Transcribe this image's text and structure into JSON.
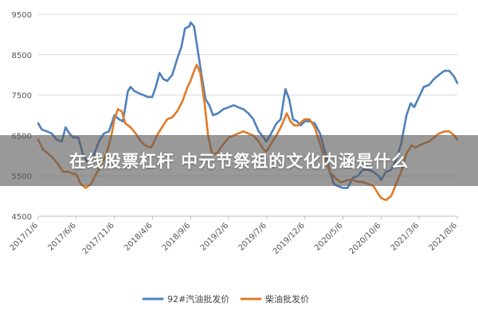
{
  "overlay": {
    "headline": "在线股票杠杆 中元节祭祖的文化内涵是什么"
  },
  "chart_data": {
    "type": "line",
    "title": "",
    "xlabel": "",
    "ylabel": "",
    "ylim": [
      4500,
      9500
    ],
    "yticks": [
      4500,
      5500,
      6500,
      7500,
      8500,
      9500
    ],
    "xlim": [
      "2017-01-06",
      "2021-08-06"
    ],
    "x_tick_labels": [
      "2017/1/6",
      "2017/6/6",
      "2017/11/6",
      "2018/4/6",
      "2018/9/6",
      "2019/2/6",
      "2019/7/6",
      "2019/12/6",
      "2020/5/6",
      "2020/10/6",
      "2021/3/6",
      "2021/8/6"
    ],
    "grid": true,
    "legend_position": "bottom",
    "colors": {
      "gasoline": "#4f81bd",
      "diesel": "#e07b28",
      "grid": "#d9d9d9",
      "axis": "#bfbfbf"
    },
    "series": [
      {
        "name": "92#汽油批发价",
        "color": "#4f81bd",
        "points": [
          [
            "2017-01-06",
            6800
          ],
          [
            "2017-01-20",
            6650
          ],
          [
            "2017-02-10",
            6600
          ],
          [
            "2017-03-01",
            6550
          ],
          [
            "2017-03-20",
            6400
          ],
          [
            "2017-04-10",
            6350
          ],
          [
            "2017-04-25",
            6700
          ],
          [
            "2017-05-10",
            6550
          ],
          [
            "2017-05-25",
            6450
          ],
          [
            "2017-06-15",
            6450
          ],
          [
            "2017-07-05",
            6000
          ],
          [
            "2017-07-25",
            5800
          ],
          [
            "2017-08-15",
            6000
          ],
          [
            "2017-09-05",
            6350
          ],
          [
            "2017-09-25",
            6550
          ],
          [
            "2017-10-15",
            6600
          ],
          [
            "2017-11-06",
            7000
          ],
          [
            "2017-11-25",
            6900
          ],
          [
            "2017-12-10",
            6850
          ],
          [
            "2017-12-30",
            7600
          ],
          [
            "2018-01-10",
            7700
          ],
          [
            "2018-01-25",
            7600
          ],
          [
            "2018-02-10",
            7550
          ],
          [
            "2018-03-01",
            7500
          ],
          [
            "2018-03-20",
            7450
          ],
          [
            "2018-04-06",
            7450
          ],
          [
            "2018-04-20",
            7700
          ],
          [
            "2018-05-05",
            8050
          ],
          [
            "2018-05-20",
            7900
          ],
          [
            "2018-06-05",
            7850
          ],
          [
            "2018-06-25",
            8000
          ],
          [
            "2018-07-15",
            8400
          ],
          [
            "2018-08-01",
            8700
          ],
          [
            "2018-08-15",
            9150
          ],
          [
            "2018-09-01",
            9200
          ],
          [
            "2018-09-06",
            9300
          ],
          [
            "2018-09-20",
            9200
          ],
          [
            "2018-10-05",
            8600
          ],
          [
            "2018-10-20",
            8000
          ],
          [
            "2018-11-05",
            7400
          ],
          [
            "2018-11-20",
            7250
          ],
          [
            "2018-12-05",
            7000
          ],
          [
            "2018-12-25",
            7050
          ],
          [
            "2019-01-15",
            7150
          ],
          [
            "2019-02-06",
            7200
          ],
          [
            "2019-02-25",
            7250
          ],
          [
            "2019-03-15",
            7200
          ],
          [
            "2019-04-05",
            7150
          ],
          [
            "2019-04-25",
            7050
          ],
          [
            "2019-05-15",
            6900
          ],
          [
            "2019-06-05",
            6600
          ],
          [
            "2019-06-25",
            6450
          ],
          [
            "2019-07-06",
            6350
          ],
          [
            "2019-07-25",
            6550
          ],
          [
            "2019-08-15",
            6800
          ],
          [
            "2019-09-01",
            6900
          ],
          [
            "2019-09-20",
            7650
          ],
          [
            "2019-10-05",
            7400
          ],
          [
            "2019-10-20",
            6900
          ],
          [
            "2019-11-05",
            6850
          ],
          [
            "2019-11-20",
            6750
          ],
          [
            "2019-12-06",
            6850
          ],
          [
            "2019-12-25",
            6850
          ],
          [
            "2020-01-15",
            6800
          ],
          [
            "2020-02-05",
            6550
          ],
          [
            "2020-02-25",
            6100
          ],
          [
            "2020-03-15",
            5600
          ],
          [
            "2020-04-01",
            5300
          ],
          [
            "2020-04-15",
            5250
          ],
          [
            "2020-05-06",
            5200
          ],
          [
            "2020-05-25",
            5200
          ],
          [
            "2020-06-15",
            5450
          ],
          [
            "2020-07-05",
            5500
          ],
          [
            "2020-07-25",
            5650
          ],
          [
            "2020-08-15",
            5650
          ],
          [
            "2020-09-05",
            5600
          ],
          [
            "2020-09-25",
            5500
          ],
          [
            "2020-10-06",
            5400
          ],
          [
            "2020-10-25",
            5600
          ],
          [
            "2020-11-15",
            5650
          ],
          [
            "2020-12-05",
            5900
          ],
          [
            "2020-12-25",
            6300
          ],
          [
            "2021-01-15",
            7000
          ],
          [
            "2021-02-01",
            7300
          ],
          [
            "2021-02-15",
            7200
          ],
          [
            "2021-03-06",
            7450
          ],
          [
            "2021-03-25",
            7700
          ],
          [
            "2021-04-15",
            7750
          ],
          [
            "2021-05-05",
            7900
          ],
          [
            "2021-05-25",
            8000
          ],
          [
            "2021-06-15",
            8100
          ],
          [
            "2021-07-05",
            8100
          ],
          [
            "2021-07-25",
            7950
          ],
          [
            "2021-08-06",
            7800
          ]
        ]
      },
      {
        "name": "柴油批发价",
        "color": "#e07b28",
        "points": [
          [
            "2017-01-06",
            6400
          ],
          [
            "2017-01-25",
            6150
          ],
          [
            "2017-02-15",
            6050
          ],
          [
            "2017-03-05",
            5950
          ],
          [
            "2017-03-25",
            5800
          ],
          [
            "2017-04-15",
            5600
          ],
          [
            "2017-05-05",
            5600
          ],
          [
            "2017-05-25",
            5550
          ],
          [
            "2017-06-06",
            5550
          ],
          [
            "2017-06-25",
            5300
          ],
          [
            "2017-07-15",
            5200
          ],
          [
            "2017-08-05",
            5300
          ],
          [
            "2017-08-25",
            5550
          ],
          [
            "2017-09-15",
            5750
          ],
          [
            "2017-10-05",
            6050
          ],
          [
            "2017-10-25",
            6500
          ],
          [
            "2017-11-06",
            6900
          ],
          [
            "2017-11-20",
            7150
          ],
          [
            "2017-12-05",
            7100
          ],
          [
            "2017-12-20",
            6800
          ],
          [
            "2018-01-10",
            6700
          ],
          [
            "2018-01-30",
            6550
          ],
          [
            "2018-02-20",
            6350
          ],
          [
            "2018-03-10",
            6250
          ],
          [
            "2018-03-30",
            6200
          ],
          [
            "2018-04-06",
            6250
          ],
          [
            "2018-04-25",
            6500
          ],
          [
            "2018-05-15",
            6700
          ],
          [
            "2018-06-05",
            6900
          ],
          [
            "2018-06-25",
            6950
          ],
          [
            "2018-07-15",
            7100
          ],
          [
            "2018-08-05",
            7350
          ],
          [
            "2018-08-25",
            7700
          ],
          [
            "2018-09-06",
            7850
          ],
          [
            "2018-09-20",
            8100
          ],
          [
            "2018-10-01",
            8250
          ],
          [
            "2018-10-15",
            8050
          ],
          [
            "2018-11-01",
            7300
          ],
          [
            "2018-11-15",
            6500
          ],
          [
            "2018-12-01",
            6050
          ],
          [
            "2018-12-20",
            6050
          ],
          [
            "2019-01-10",
            6250
          ],
          [
            "2019-02-06",
            6450
          ],
          [
            "2019-02-25",
            6500
          ],
          [
            "2019-03-15",
            6550
          ],
          [
            "2019-04-05",
            6600
          ],
          [
            "2019-04-25",
            6550
          ],
          [
            "2019-05-15",
            6500
          ],
          [
            "2019-06-05",
            6350
          ],
          [
            "2019-06-25",
            6150
          ],
          [
            "2019-07-06",
            6100
          ],
          [
            "2019-07-25",
            6300
          ],
          [
            "2019-08-15",
            6500
          ],
          [
            "2019-09-05",
            6750
          ],
          [
            "2019-09-25",
            7050
          ],
          [
            "2019-10-10",
            6850
          ],
          [
            "2019-10-25",
            6750
          ],
          [
            "2019-11-10",
            6750
          ],
          [
            "2019-11-25",
            6850
          ],
          [
            "2019-12-06",
            6900
          ],
          [
            "2019-12-25",
            6900
          ],
          [
            "2020-01-15",
            6700
          ],
          [
            "2020-02-05",
            6300
          ],
          [
            "2020-02-25",
            5900
          ],
          [
            "2020-03-15",
            5600
          ],
          [
            "2020-04-05",
            5450
          ],
          [
            "2020-04-25",
            5350
          ],
          [
            "2020-05-06",
            5350
          ],
          [
            "2020-05-25",
            5400
          ],
          [
            "2020-06-15",
            5400
          ],
          [
            "2020-07-05",
            5350
          ],
          [
            "2020-07-25",
            5350
          ],
          [
            "2020-08-15",
            5300
          ],
          [
            "2020-09-05",
            5250
          ],
          [
            "2020-09-25",
            5050
          ],
          [
            "2020-10-06",
            4950
          ],
          [
            "2020-10-25",
            4900
          ],
          [
            "2020-11-15",
            5000
          ],
          [
            "2020-12-05",
            5300
          ],
          [
            "2020-12-25",
            5600
          ],
          [
            "2021-01-15",
            6050
          ],
          [
            "2021-02-05",
            6250
          ],
          [
            "2021-02-20",
            6200
          ],
          [
            "2021-03-06",
            6250
          ],
          [
            "2021-03-25",
            6300
          ],
          [
            "2021-04-15",
            6350
          ],
          [
            "2021-05-05",
            6450
          ],
          [
            "2021-05-25",
            6550
          ],
          [
            "2021-06-15",
            6600
          ],
          [
            "2021-07-05",
            6600
          ],
          [
            "2021-07-25",
            6500
          ],
          [
            "2021-08-06",
            6400
          ]
        ]
      }
    ]
  }
}
